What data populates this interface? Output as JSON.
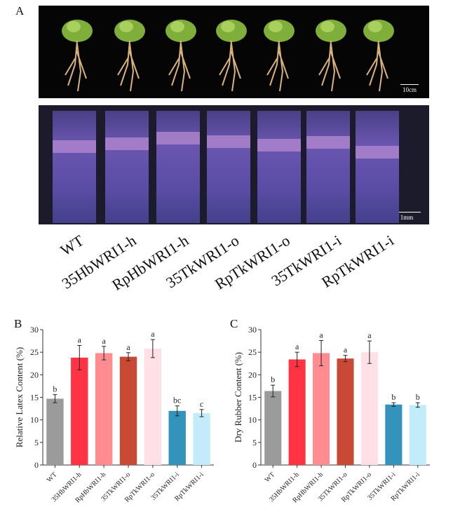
{
  "panel_a": {
    "letter": "A",
    "scale_bar_plants": "10cm",
    "scale_bar_tubes": "1mm",
    "genotype_labels": [
      "WT",
      "35HbWRI1-h",
      "RpHbWRI1-h",
      "35TkWRI1-o",
      "RpTkWRI1-o",
      "35TkWRI1-i",
      "RpTkWRI1-i"
    ]
  },
  "chart_data": [
    {
      "panel": "B",
      "type": "bar",
      "ylabel": "Relative Latex Content (%)",
      "ylim": [
        0,
        30
      ],
      "yticks": [
        0,
        5,
        10,
        15,
        20,
        25,
        30
      ],
      "categories": [
        "WT",
        "35HbWRI1-h",
        "RpHbWRI1-h",
        "35TkWRI1-o",
        "RpTkWRI1-o",
        "35TkWRI1-i",
        "RpTkWRI1-i"
      ],
      "values": [
        14.7,
        23.8,
        24.8,
        24.0,
        25.8,
        12.0,
        11.5
      ],
      "errors": [
        0.9,
        2.7,
        1.5,
        0.9,
        2.0,
        1.1,
        0.8
      ],
      "significance": [
        "b",
        "a",
        "a",
        "a",
        "a",
        "bc",
        "c"
      ],
      "colors": [
        "#9b9b9b",
        "#ff3344",
        "#ff8c90",
        "#c84a35",
        "#ffe0e6",
        "#3493bd",
        "#c3ecfb"
      ]
    },
    {
      "panel": "C",
      "type": "bar",
      "ylabel": "Dry Rubber Content (%)",
      "ylim": [
        0,
        30
      ],
      "yticks": [
        0,
        5,
        10,
        15,
        20,
        25,
        30
      ],
      "categories": [
        "WT",
        "35HbWRI1-h",
        "RpHbWRI1-h",
        "35TkWRI1-o",
        "RpTkWRI1-o",
        "35TkWRI1-i",
        "RpTkWRI1-i"
      ],
      "values": [
        16.4,
        23.4,
        24.8,
        23.6,
        25.0,
        13.4,
        13.3
      ],
      "errors": [
        1.3,
        1.6,
        2.8,
        0.7,
        2.5,
        0.4,
        0.5
      ],
      "significance": [
        "b",
        "a",
        "a",
        "a",
        "a",
        "b",
        "b"
      ],
      "colors": [
        "#9b9b9b",
        "#ff3344",
        "#ff8c90",
        "#c84a35",
        "#ffe0e6",
        "#3493bd",
        "#c3ecfb"
      ]
    }
  ]
}
